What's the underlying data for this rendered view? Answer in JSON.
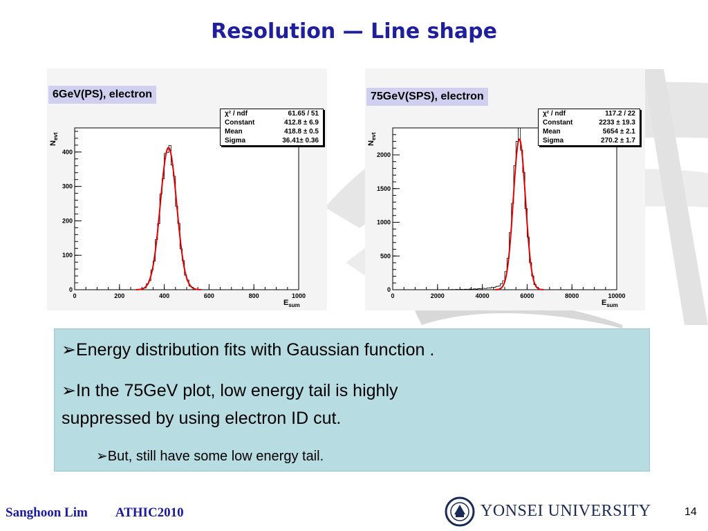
{
  "slide": {
    "title": "Resolution — Line shape",
    "page_number": "14"
  },
  "bullets": [
    {
      "marker": "➢",
      "text": "Energy distribution fits with Gaussian function ."
    },
    {
      "marker": "➢",
      "text": "In the 75GeV plot, low energy tail is highly"
    },
    {
      "marker": "",
      "text": "suppressed by using electron ID cut."
    },
    {
      "marker": "➢",
      "text": "But, still have some low energy tail."
    }
  ],
  "footer": {
    "author": "Sanghoon Lim",
    "event": "ATHIC2010",
    "university": "YONSEI UNIVERSITY"
  },
  "colors": {
    "title": "#1f1f9e",
    "fit_line": "#e00000",
    "textbox_bg": "#b7dde3",
    "label_bg": "#cfcff0",
    "footer_text": "#1a1aa0"
  },
  "chart_data": [
    {
      "type": "histogram",
      "panel_label": "6GeV(PS), electron",
      "xlabel_main": "E",
      "xlabel_sub": "sum",
      "ylabel_main": "N",
      "ylabel_sub": "evt",
      "xlim": [
        0,
        1000
      ],
      "ylim": [
        0,
        470
      ],
      "xticks": [
        0,
        200,
        400,
        600,
        800,
        1000
      ],
      "yticks": [
        0,
        100,
        200,
        300,
        400
      ],
      "fit": {
        "type": "gaussian",
        "constant": 412.8,
        "mean": 418.8,
        "sigma": 36.41
      },
      "stats": [
        {
          "label": "χ² / ndf",
          "value": "61.65 / 51"
        },
        {
          "label": "Constant",
          "value": "412.8 ± 6.9"
        },
        {
          "label": "Mean",
          "value": "418.8 ± 0.5"
        },
        {
          "label": "Sigma",
          "value": "36.41± 0.36"
        }
      ]
    },
    {
      "type": "histogram",
      "panel_label": "75GeV(SPS), electron",
      "xlabel_main": "E",
      "xlabel_sub": "sum",
      "ylabel_main": "N",
      "ylabel_sub": "evt",
      "xlim": [
        0,
        10000
      ],
      "ylim": [
        0,
        2400
      ],
      "xticks": [
        0,
        2000,
        4000,
        6000,
        8000,
        10000
      ],
      "yticks": [
        0,
        500,
        1000,
        1500,
        2000
      ],
      "fit": {
        "type": "gaussian",
        "constant": 2233,
        "mean": 5654,
        "sigma": 270.2
      },
      "stats": [
        {
          "label": "χ² / ndf",
          "value": "117.2 / 22"
        },
        {
          "label": "Constant",
          "value": "2233 ± 19.3"
        },
        {
          "label": "Mean",
          "value": "5654 ± 2.1"
        },
        {
          "label": "Sigma",
          "value": "270.2 ± 1.7"
        }
      ]
    }
  ]
}
